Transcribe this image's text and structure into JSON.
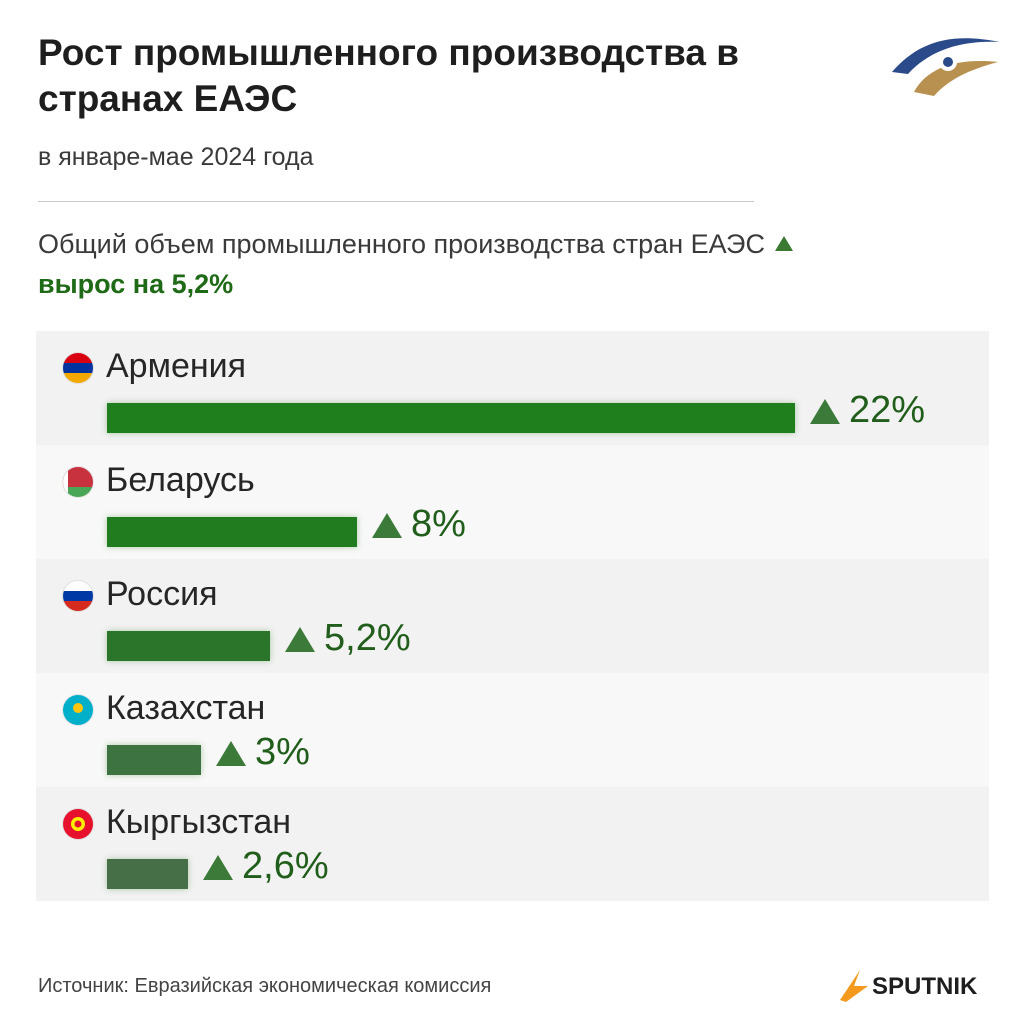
{
  "header": {
    "title": "Рост промышленного производства в странах ЕАЭС",
    "subtitle": "в январе-мае 2024 года",
    "summary_text": "Общий объем промышленного производства стран ЕАЭС",
    "summary_growth": "вырос на 5,2%"
  },
  "chart_data": {
    "type": "bar",
    "orientation": "horizontal",
    "unit": "%",
    "categories": [
      "Армения",
      "Беларусь",
      "Россия",
      "Казахстан",
      "Кыргызстан"
    ],
    "values": [
      22,
      8,
      5.2,
      3,
      2.6
    ],
    "value_labels": [
      "22%",
      "8%",
      "5,2%",
      "3%",
      "2,6%"
    ],
    "bar_colors": [
      "#1f7f1d",
      "#217b1f",
      "#2a752a",
      "#3d7340",
      "#466f47"
    ],
    "arrow_color": "#3b7a38"
  },
  "flags": [
    {
      "icon": "armenia-flag-icon",
      "stripes": [
        "#d90012",
        "#0033a0",
        "#f2a800"
      ]
    },
    {
      "icon": "belarus-flag-icon",
      "stripes": [
        "#c8313e",
        "#c8313e",
        "#4aa657"
      ]
    },
    {
      "icon": "russia-flag-icon",
      "stripes": [
        "#ffffff",
        "#0039a6",
        "#d52b1e"
      ]
    },
    {
      "icon": "kazakhstan-flag-icon",
      "stripes": [
        "#00afca",
        "#00afca",
        "#00afca"
      ]
    },
    {
      "icon": "kyrgyzstan-flag-icon",
      "stripes": [
        "#e8112d",
        "#e8112d",
        "#e8112d"
      ]
    }
  ],
  "footer": {
    "source": "Источник: Евразийская экономическая комиссия",
    "brand": "SPUTNIK"
  },
  "watermark": "SPUTNIK",
  "colors": {
    "accent_green": "#1f6a16",
    "brand_orange": "#f39a1e"
  }
}
